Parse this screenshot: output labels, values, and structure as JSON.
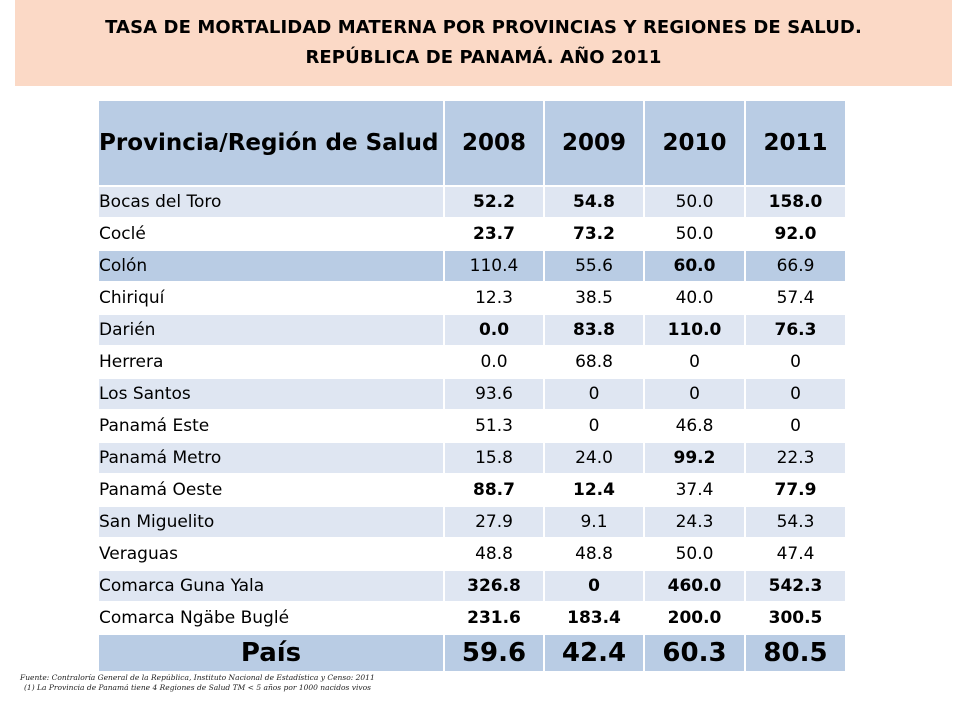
{
  "title": {
    "line1": "TASA DE MORTALIDAD MATERNA POR PROVINCIAS Y REGIONES DE SALUD.",
    "line2": "REPÚBLICA DE PANAMÁ.  AÑO 2011"
  },
  "table": {
    "headers": [
      "Provincia/Región de Salud",
      "2008",
      "2009",
      "2010",
      "2011"
    ],
    "rows": [
      {
        "name": "Bocas del Toro",
        "values": [
          "52.2",
          "54.8",
          "50.0",
          "158.0"
        ],
        "bold": [
          true,
          true,
          false,
          true
        ],
        "shade": "alt"
      },
      {
        "name": "Coclé",
        "values": [
          "23.7",
          "73.2",
          "50.0",
          "92.0"
        ],
        "bold": [
          true,
          true,
          false,
          true
        ],
        "shade": "plain"
      },
      {
        "name": "Colón",
        "values": [
          "110.4",
          "55.6",
          "60.0",
          "66.9"
        ],
        "bold": [
          false,
          false,
          true,
          false
        ],
        "shade": "dark"
      },
      {
        "name": "Chiriquí",
        "values": [
          "12.3",
          "38.5",
          "40.0",
          "57.4"
        ],
        "bold": [
          false,
          false,
          false,
          false
        ],
        "shade": "plain"
      },
      {
        "name": "Darién",
        "values": [
          "0.0",
          "83.8",
          "110.0",
          "76.3"
        ],
        "bold": [
          true,
          true,
          true,
          true
        ],
        "shade": "alt"
      },
      {
        "name": "Herrera",
        "values": [
          "0.0",
          "68.8",
          "0",
          "0"
        ],
        "bold": [
          false,
          false,
          false,
          false
        ],
        "shade": "plain"
      },
      {
        "name": "Los Santos",
        "values": [
          "93.6",
          "0",
          "0",
          "0"
        ],
        "bold": [
          false,
          false,
          false,
          false
        ],
        "shade": "alt"
      },
      {
        "name": "Panamá Este",
        "values": [
          "51.3",
          "0",
          "46.8",
          "0"
        ],
        "bold": [
          false,
          false,
          false,
          false
        ],
        "shade": "plain"
      },
      {
        "name": "Panamá Metro",
        "values": [
          "15.8",
          "24.0",
          "99.2",
          "22.3"
        ],
        "bold": [
          false,
          false,
          true,
          false
        ],
        "shade": "alt"
      },
      {
        "name": "Panamá Oeste",
        "values": [
          "88.7",
          "12.4",
          "37.4",
          "77.9"
        ],
        "bold": [
          true,
          true,
          false,
          true
        ],
        "shade": "plain"
      },
      {
        "name": "San Miguelito",
        "values": [
          "27.9",
          "9.1",
          "24.3",
          "54.3"
        ],
        "bold": [
          false,
          false,
          false,
          false
        ],
        "shade": "alt"
      },
      {
        "name": "Veraguas",
        "values": [
          "48.8",
          "48.8",
          "50.0",
          "47.4"
        ],
        "bold": [
          false,
          false,
          false,
          false
        ],
        "shade": "plain"
      },
      {
        "name": "Comarca Guna  Yala",
        "values": [
          "326.8",
          "0",
          "460.0",
          "542.3"
        ],
        "bold": [
          true,
          true,
          true,
          true
        ],
        "shade": "alt"
      },
      {
        "name": "Comarca Ngäbe  Buglé",
        "values": [
          "231.6",
          "183.4",
          "200.0",
          "300.5"
        ],
        "bold": [
          true,
          true,
          true,
          true
        ],
        "shade": "plain"
      }
    ],
    "total": {
      "name": "País",
      "values": [
        "59.6",
        "42.4",
        "60.3",
        "80.5"
      ]
    }
  },
  "footnotes": {
    "source": "Fuente: Contraloría General de la República, Instituto Nacional de Estadística y Censo: 2011",
    "note": "(1) La Provincia de Panamá tiene 4 Regiones de Salud TM < 5 años por 1000 nacidos vivos"
  },
  "colors": {
    "title_bg": "#fbd9c6",
    "header_bg": "#b9cce4",
    "row_alt_bg": "#dfe6f2",
    "row_plain_bg": "#ffffff"
  }
}
